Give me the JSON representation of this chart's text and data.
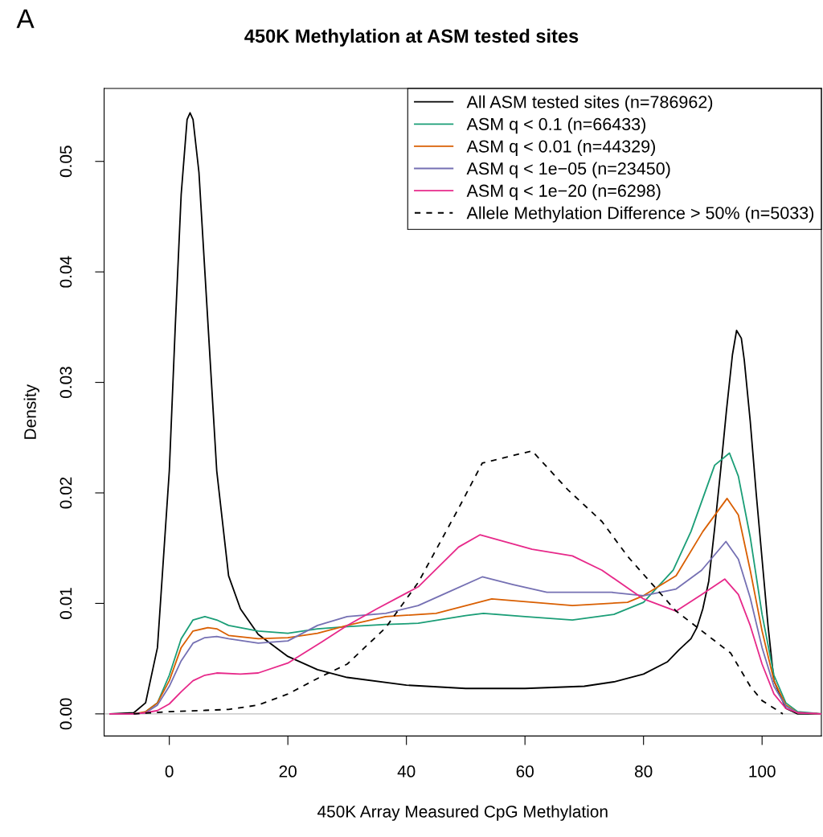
{
  "chart_data": {
    "type": "line",
    "title": "450K Methylation at ASM tested sites",
    "xlabel": "450K Array Measured CpG Methylation",
    "ylabel": "Density",
    "annotations": [
      "A"
    ],
    "xlim": [
      -11,
      110
    ],
    "xticks": [
      0,
      20,
      40,
      60,
      80,
      100
    ],
    "ylim": [
      -0.002,
      0.0566
    ],
    "yticks": [
      {
        "value": 0,
        "label": "0.00"
      },
      0.01,
      0.02,
      0.03,
      0.04,
      0.05
    ],
    "grid": false,
    "legend": "top right",
    "marker": "none",
    "ref_lines": [
      {
        "axis": "y",
        "value": 0,
        "color": "#bebebe"
      }
    ],
    "series": [
      {
        "name": "All ASM tested sites (n=786962)",
        "color": "#000000",
        "line_style": "solid",
        "x": [
          -10,
          -6,
          -4,
          -2,
          0,
          1,
          2,
          3,
          3.5,
          4,
          5,
          6,
          8,
          10,
          12,
          15,
          20,
          25,
          30,
          40,
          50,
          60,
          70,
          75,
          80,
          84,
          86,
          88,
          89,
          90,
          91,
          92,
          93,
          94,
          95,
          95.7,
          96.5,
          97,
          98,
          99,
          100,
          101,
          102,
          104,
          106,
          110
        ],
        "values": [
          0,
          0.0001,
          0.001,
          0.006,
          0.022,
          0.035,
          0.047,
          0.0538,
          0.0544,
          0.0538,
          0.049,
          0.04,
          0.022,
          0.0125,
          0.0095,
          0.0072,
          0.0052,
          0.004,
          0.0033,
          0.0026,
          0.0023,
          0.0023,
          0.0025,
          0.0029,
          0.0036,
          0.0047,
          0.0058,
          0.0068,
          0.0078,
          0.0095,
          0.012,
          0.0168,
          0.022,
          0.0275,
          0.0325,
          0.0347,
          0.034,
          0.032,
          0.0265,
          0.02,
          0.014,
          0.008,
          0.003,
          0.0005,
          0,
          0
        ]
      },
      {
        "name": "ASM q < 0.1 (n=66433)",
        "color": "#1b9e77",
        "line_style": "solid",
        "x": [
          -4,
          -2,
          0,
          2,
          4,
          6,
          8,
          10,
          15,
          20,
          25,
          30,
          36.5,
          42,
          50,
          53,
          60,
          68,
          75,
          80,
          85,
          88,
          90,
          92,
          94.5,
          96,
          98,
          100,
          102,
          104,
          106,
          110
        ],
        "values": [
          0.0002,
          0.001,
          0.0035,
          0.0068,
          0.0085,
          0.0088,
          0.0085,
          0.008,
          0.0075,
          0.0073,
          0.0077,
          0.0079,
          0.0081,
          0.0082,
          0.0089,
          0.0091,
          0.0088,
          0.0085,
          0.009,
          0.0101,
          0.013,
          0.0165,
          0.0195,
          0.0225,
          0.0236,
          0.0215,
          0.016,
          0.009,
          0.0035,
          0.001,
          0.0002,
          0
        ]
      },
      {
        "name": "ASM q < 0.01 (n=44329)",
        "color": "#d95f02",
        "line_style": "solid",
        "x": [
          -10,
          -6,
          -4,
          -2,
          0,
          2,
          4,
          6.5,
          8,
          10,
          15,
          20,
          25,
          30,
          36.5,
          45,
          54.4,
          68,
          77.3,
          80,
          85.5,
          90,
          94.1,
          96,
          98,
          100,
          102,
          104,
          106,
          110
        ],
        "values": [
          0,
          0,
          0.0002,
          0.001,
          0.003,
          0.006,
          0.0075,
          0.0078,
          0.0077,
          0.0071,
          0.0068,
          0.0069,
          0.0073,
          0.008,
          0.0088,
          0.0091,
          0.0104,
          0.0098,
          0.0101,
          0.0107,
          0.0125,
          0.0165,
          0.0195,
          0.018,
          0.013,
          0.0075,
          0.003,
          0.0008,
          0.0001,
          0
        ]
      },
      {
        "name": "ASM q < 1e−05 (n=23450)",
        "color": "#7570b3",
        "line_style": "solid",
        "x": [
          -10,
          -6,
          -4,
          -2,
          0,
          2,
          4,
          6,
          8,
          10,
          15,
          20,
          25,
          30,
          36.5,
          42,
          47,
          52.8,
          58,
          63.7,
          74.6,
          80,
          85.5,
          89.8,
          93.9,
          96,
          98,
          100,
          102,
          104,
          106,
          110
        ],
        "values": [
          0,
          0,
          0.0001,
          0.0008,
          0.0025,
          0.0048,
          0.0064,
          0.0069,
          0.007,
          0.0068,
          0.0064,
          0.0066,
          0.008,
          0.0088,
          0.0091,
          0.0098,
          0.011,
          0.0124,
          0.0117,
          0.011,
          0.011,
          0.0107,
          0.0113,
          0.013,
          0.0156,
          0.014,
          0.0105,
          0.006,
          0.0025,
          0.0007,
          0.0001,
          0
        ]
      },
      {
        "name": "ASM q < 1e−20 (n=6298)",
        "color": "#e7298a",
        "line_style": "solid",
        "x": [
          -10,
          -6,
          -4,
          -2,
          0,
          2,
          4,
          6,
          8,
          12,
          15,
          20,
          25.7,
          30,
          35,
          42,
          48.8,
          52.4,
          61.2,
          68,
          73,
          80,
          85.5,
          89.8,
          93.7,
          96,
          98,
          100,
          102,
          104,
          106,
          110
        ],
        "values": [
          0,
          0,
          0.0001,
          0.0003,
          0.0009,
          0.002,
          0.003,
          0.0035,
          0.0037,
          0.0036,
          0.0037,
          0.0046,
          0.0065,
          0.008,
          0.0095,
          0.0115,
          0.0151,
          0.0162,
          0.0149,
          0.0143,
          0.013,
          0.0104,
          0.0093,
          0.0108,
          0.0122,
          0.0108,
          0.008,
          0.0045,
          0.0018,
          0.0005,
          0.0001,
          0
        ]
      },
      {
        "name": "Allele Methylation Difference > 50% (n=5033)",
        "color": "#000000",
        "line_style": "dashed",
        "x": [
          -6,
          0,
          10,
          15,
          20,
          25.7,
          30,
          36.5,
          42,
          48.8,
          52.8,
          61.2,
          67.2,
          73,
          77.4,
          85.5,
          94.7,
          98,
          100,
          103.5
        ],
        "values": [
          0,
          0.0002,
          0.0004,
          0.0008,
          0.0018,
          0.0034,
          0.0045,
          0.0078,
          0.0119,
          0.0186,
          0.0227,
          0.0238,
          0.0203,
          0.0174,
          0.0142,
          0.0093,
          0.0055,
          0.0025,
          0.0012,
          0
        ]
      }
    ]
  }
}
